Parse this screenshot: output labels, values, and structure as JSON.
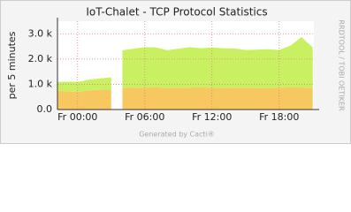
{
  "chart_data": {
    "type": "stacked-area",
    "title": "IoT-Chalet - TCP Protocol Statistics",
    "y_label": "per 5 minutes",
    "side_label": "RRDTOOL / TOBI OETIKER",
    "footer": "Generated by Cacti®",
    "x": [
      -1.8,
      -1,
      0,
      1,
      2,
      3,
      3.5,
      4,
      5,
      6,
      7,
      8,
      9,
      10,
      11,
      12,
      13,
      14,
      15,
      16,
      17,
      18,
      19,
      20,
      21
    ],
    "series": [
      {
        "color": "#f8c860",
        "values": [
          750,
          720,
          700,
          760,
          780,
          800,
          null,
          850,
          860,
          870,
          880,
          850,
          860,
          870,
          880,
          860,
          850,
          870,
          860,
          850,
          840,
          860,
          880,
          870,
          860
        ]
      },
      {
        "color": "#c8f060",
        "values": [
          350,
          380,
          400,
          420,
          450,
          480,
          null,
          1500,
          1550,
          1600,
          1580,
          1500,
          1550,
          1600,
          1550,
          1600,
          1580,
          1550,
          1500,
          1520,
          1550,
          1500,
          1650,
          2000,
          1600
        ]
      }
    ],
    "xlim": [
      -1.8,
      21.1
    ],
    "xticks": [
      {
        "value": 0,
        "label": "Fr 00:00"
      },
      {
        "value": 6,
        "label": "Fr 06:00"
      },
      {
        "value": 12,
        "label": "Fr 12:00"
      },
      {
        "value": 18,
        "label": "Fr 18:00"
      }
    ],
    "ylim": [
      0,
      3500
    ],
    "yticks": [
      {
        "value": 0,
        "label": "0.0"
      },
      {
        "value": 1000,
        "label": "1.0 k"
      },
      {
        "value": 2000,
        "label": "2.0 k"
      },
      {
        "value": 3000,
        "label": "3.0 k"
      }
    ],
    "grid": true
  }
}
